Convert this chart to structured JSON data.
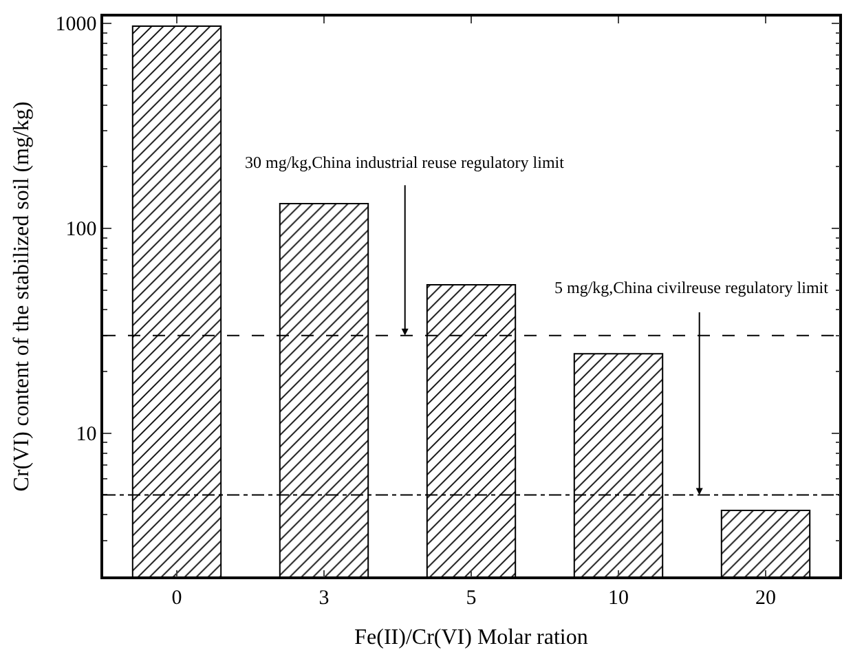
{
  "chart_data": {
    "type": "bar",
    "xlabel": "Fe(II)/Cr(VI) Molar ration",
    "ylabel": "Cr(VI) content of the stabilized soil (mg/kg)",
    "categories": [
      "0",
      "3",
      "5",
      "10",
      "20"
    ],
    "values": [
      970,
      132,
      53,
      24.4,
      4.2
    ],
    "color": "#000000",
    "log": true,
    "ylim": [
      2,
      1080
    ],
    "yticks": [
      10,
      100,
      1000
    ],
    "legend": false,
    "ref_lines": [
      {
        "axis": "y",
        "value": 30,
        "label": "30 mg/kg,China industrial reuse regulatory limit",
        "line_style": "dashed",
        "color": "#000000"
      },
      {
        "axis": "y",
        "value": 5,
        "label": "5 mg/kg,China civilreuse regulatory limit",
        "line_style": "dashdot",
        "color": "#000000"
      }
    ]
  }
}
